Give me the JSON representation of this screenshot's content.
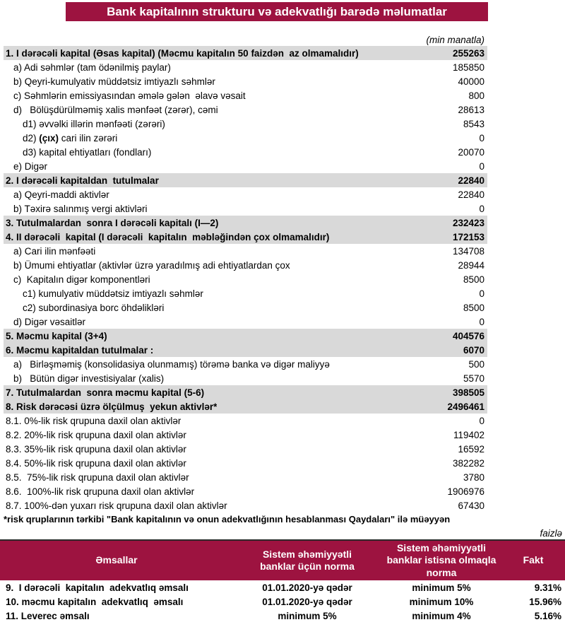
{
  "page": {
    "title": "Bank kapitalının strukturu və adekvatlığı barədə məlumatlar",
    "unit_note": "(min manatla)",
    "percent_note": "faizlə",
    "footnote": "*risk qruplarının tərkibi \"Bank kapitalının və onun adekvatlığının hesablanması Qaydaları\" ilə müəyyən"
  },
  "colors": {
    "maroon": "#9D1340",
    "row_gray": "#D9D9D9"
  },
  "capital_table": {
    "rows": [
      {
        "label": "1. I dərəcəli kapital (Əsas kapital) (Məcmu kapitalın 50 faizdən  az olmamalıdır)",
        "value": "255263",
        "section": true,
        "indent": 0
      },
      {
        "label": "a) Adi səhmlər (tam ödənilmiş paylar)",
        "value": "185850",
        "section": false,
        "indent": 1
      },
      {
        "label": "b) Qeyri-kumulyativ müddətsiz imtiyazlı səhmlər",
        "value": "40000",
        "section": false,
        "indent": 1
      },
      {
        "label": "c) Səhmlərin emissiyasından əmələ gələn  əlavə vəsait",
        "value": "800",
        "section": false,
        "indent": 1
      },
      {
        "label": "d)   Bölüşdürülməmiş xalis mənfəət (zərər), cəmi",
        "value": "28613",
        "section": false,
        "indent": 1
      },
      {
        "label": "d1) əvvəlki illərin mənfəəti (zərəri)",
        "value": "8543",
        "section": false,
        "indent": 2
      },
      {
        "label": "d2) (çıx) cari ilin zərəri",
        "value": "0",
        "section": false,
        "indent": 2,
        "bold_part": "(çıx)"
      },
      {
        "label": "d3) kapital ehtiyatları (fondları)",
        "value": "20070",
        "section": false,
        "indent": 2
      },
      {
        "label": "e) Digər",
        "value": "0",
        "section": false,
        "indent": 1
      },
      {
        "label": "2. I dərəcəli kapitaldan  tutulmalar",
        "value": "22840",
        "section": true,
        "indent": 0
      },
      {
        "label": "a) Qeyri-maddi aktivlər",
        "value": "22840",
        "section": false,
        "indent": 1
      },
      {
        "label": "b) Təxirə salınmış vergi aktivləri",
        "value": "0",
        "section": false,
        "indent": 1
      },
      {
        "label": "3. Tutulmalardan  sonra I dərəcəli kapitalı (I—2)",
        "value": "232423",
        "section": true,
        "indent": 0
      },
      {
        "label": "4. II dərəcəli  kapital (I dərəcəli  kapitalın  məbləğindən çox olmamalıdır)",
        "value": "172153",
        "section": true,
        "indent": 0
      },
      {
        "label": "a) Cari ilin mənfəəti",
        "value": "134708",
        "section": false,
        "indent": 1
      },
      {
        "label": "b) Ümumi ehtiyatlar (aktivlər üzrə yaradılmış adi ehtiyatlardan çox",
        "value": "28944",
        "section": false,
        "indent": 1
      },
      {
        "label": "c)  Kapitalın digər komponentləri",
        "value": "8500",
        "section": false,
        "indent": 1
      },
      {
        "label": "c1) kumulyativ müddətsiz imtiyazlı səhmlər",
        "value": "0",
        "section": false,
        "indent": 2
      },
      {
        "label": "c2) subordinasiya borc öhdəlikləri",
        "value": "8500",
        "section": false,
        "indent": 2
      },
      {
        "label": "d) Digər vəsaitlər",
        "value": "0",
        "section": false,
        "indent": 1
      },
      {
        "label": "5. Məcmu kapital (3+4)",
        "value": "404576",
        "section": true,
        "indent": 0
      },
      {
        "label": "6. Məcmu kapitaldan tutulmalar :",
        "value": "6070",
        "section": true,
        "indent": 0
      },
      {
        "label": "a)   Birləşməmiş (konsolidasiya olunmamış) törəmə banka və digər maliyyə",
        "value": "500",
        "section": false,
        "indent": 1
      },
      {
        "label": "b)   Bütün digər investisiyalar (xalis)",
        "value": "5570",
        "section": false,
        "indent": 1
      },
      {
        "label": "7. Tutulmalardan  sonra məcmu kapital (5-6)",
        "value": "398505",
        "section": true,
        "indent": 0
      },
      {
        "label": "8. Risk dərəcəsi üzrə ölçülmuş  yekun aktivlər*",
        "value": "2496461",
        "section": true,
        "indent": 0
      },
      {
        "label": "8.1. 0%-lik risk qrupuna daxil olan aktivlər",
        "value": "0",
        "section": false,
        "indent": 0
      },
      {
        "label": "8.2. 20%-lik risk qrupuna daxil olan aktivlər",
        "value": "119402",
        "section": false,
        "indent": 0
      },
      {
        "label": "8.3. 35%-lik risk qrupuna daxil olan aktivlər",
        "value": "16592",
        "section": false,
        "indent": 0
      },
      {
        "label": "8.4. 50%-lik risk qrupuna daxil olan aktivlər",
        "value": "382282",
        "section": false,
        "indent": 0
      },
      {
        "label": "8.5.  75%-lik risk qrupuna daxil olan aktivlər",
        "value": "3780",
        "section": false,
        "indent": 0
      },
      {
        "label": "8.6.  100%-lik risk qrupuna daxil olan aktivlər",
        "value": "1906976",
        "section": false,
        "indent": 0
      },
      {
        "label": "8.7. 100%-dən yuxarı risk qrupuna daxil olan aktivlər",
        "value": "67430",
        "section": false,
        "indent": 0
      }
    ]
  },
  "ratios_table": {
    "headers": [
      "Əmsallar",
      "Sistem əhəmiyyətli banklar üçün norma",
      "Sistem əhəmiyyətli banklar istisna olmaqla norma",
      "Fakt"
    ],
    "rows": [
      {
        "label": "9.  I dərəcəli  kapitalın  adekvatlıq əmsalı",
        "norma_sistem": "01.01.2020-yə qədər",
        "norma_istisna": "minimum 5%",
        "fakt": "9.31%"
      },
      {
        "label": "10. məcmu kapitalın  adekvatlıq  əmsalı",
        "norma_sistem": "01.01.2020-yə qədər",
        "norma_istisna": "minimum 10%",
        "fakt": "15.96%"
      },
      {
        "label": "11. Leverec əmsalı",
        "norma_sistem": "minimum 5%",
        "norma_istisna": "minimum 4%",
        "fakt": "5.16%"
      }
    ]
  }
}
